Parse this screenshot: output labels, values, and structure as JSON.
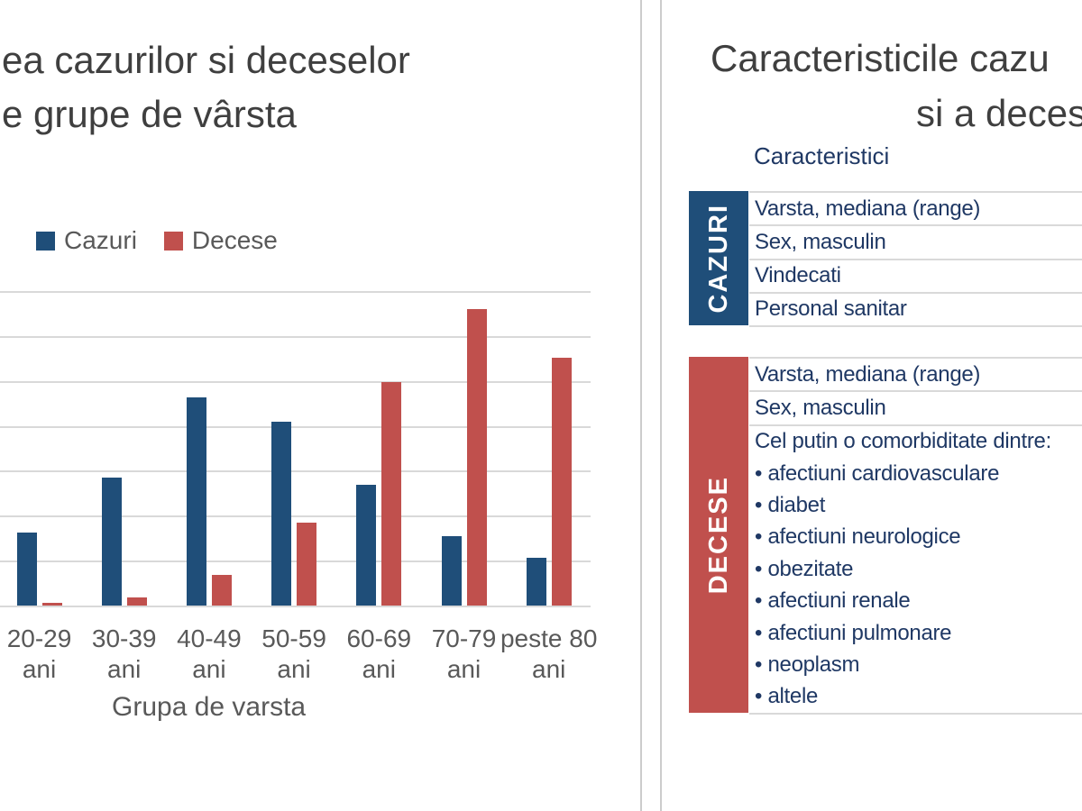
{
  "left_panel": {
    "title_line1": "ea cazurilor si deceselor",
    "title_line2": "e grupe de vârsta",
    "axis_title": "Grupa de varsta"
  },
  "chart_data": {
    "type": "bar",
    "title": "ea cazurilor si deceselor / e grupe de vârsta (title cropped at left edge)",
    "categories": [
      "20-29",
      "30-39",
      "40-49",
      "50-59",
      "60-69",
      "70-79",
      "peste 80"
    ],
    "category_unit": "ani",
    "series": [
      {
        "name": "Cazuri",
        "color": "#1f4e79",
        "values": [
          8.1,
          14.2,
          23.2,
          20.5,
          13.4,
          7.7,
          5.3
        ]
      },
      {
        "name": "Decese",
        "color": "#c0504d",
        "values": [
          0.3,
          0.9,
          3.4,
          9.2,
          24.9,
          33,
          27.6
        ]
      }
    ],
    "xlabel": "Grupa de varsta",
    "ylabel": "",
    "ylim": [
      0,
      35
    ],
    "grid_step": 5,
    "grid": "on",
    "legend_position": "top-left",
    "note": "y-axis tick labels are cropped out of the frame; values estimated from gridlines"
  },
  "right_panel": {
    "title_line1": "Caracteristicile cazu",
    "title_line2": "si a deces",
    "table_header": "Caracteristici",
    "cazuri": {
      "label": "CAZURI",
      "color": "#1f4e79",
      "rows": [
        "Varsta, mediana (range)",
        "Sex, masculin",
        "Vindecati",
        "Personal sanitar"
      ]
    },
    "decese": {
      "label": "DECESE",
      "color": "#c0504d",
      "rows": [
        "Varsta, mediana (range)",
        "Sex, masculin",
        "Cel putin o comorbiditate dintre:",
        "• afectiuni cardiovasculare",
        "• diabet",
        "• afectiuni neurologice",
        "• obezitate",
        "• afectiuni renale",
        "• afectiuni pulmonare",
        "• neoplasm",
        "• altele"
      ]
    }
  },
  "colors": {
    "bar_cazuri": "#1f4e79",
    "bar_decese": "#c0504d",
    "title_text": "#3f3f3f",
    "axis_text": "#595959",
    "table_text": "#1f3864",
    "gridline": "#d9d9d9",
    "divider": "#cccccc"
  }
}
